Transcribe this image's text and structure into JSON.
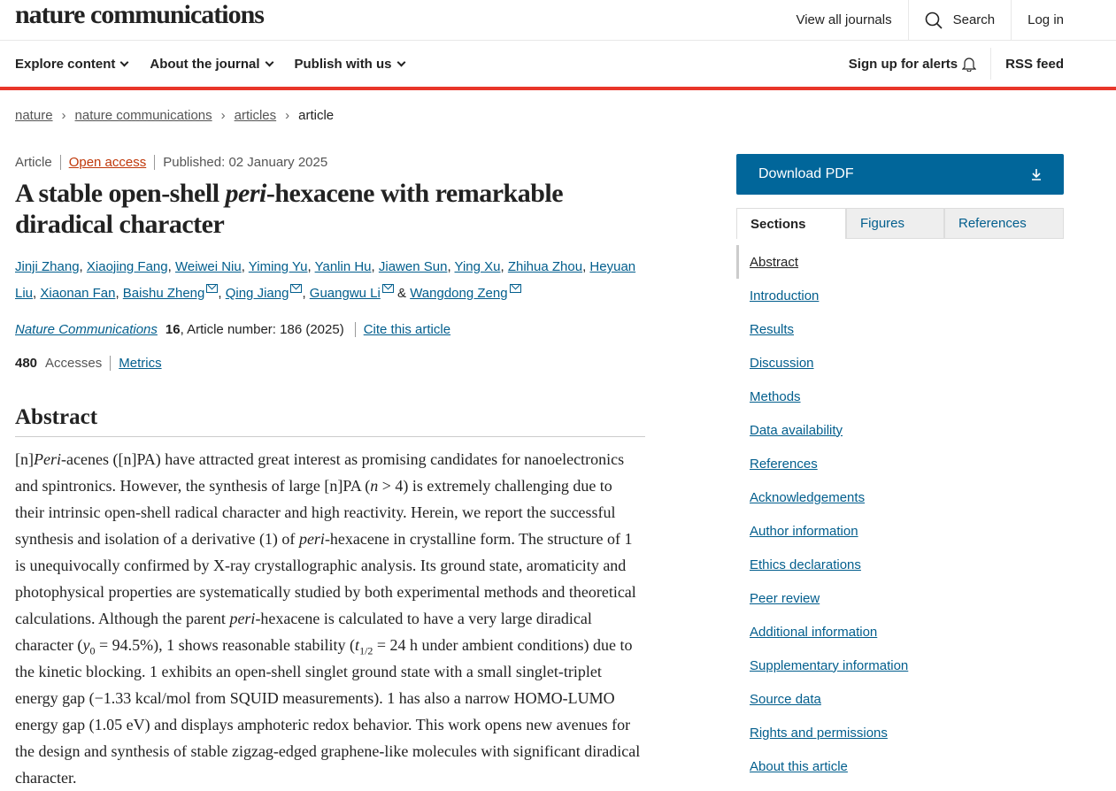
{
  "header": {
    "logo": "nature communications",
    "view_all": "View all journals",
    "search": "Search",
    "login": "Log in"
  },
  "nav": {
    "items": [
      "Explore content",
      "About the journal",
      "Publish with us"
    ],
    "alerts": "Sign up for alerts",
    "rss": "RSS feed"
  },
  "breadcrumb": [
    "nature",
    "nature communications",
    "articles",
    "article"
  ],
  "meta": {
    "type": "Article",
    "access": "Open access",
    "published": "Published: 02 January 2025"
  },
  "title": {
    "pre": "A stable open-shell ",
    "italic": "peri",
    "post": "-hexacene with remarkable diradical character"
  },
  "authors": [
    {
      "name": "Jinji Zhang",
      "mail": false
    },
    {
      "name": "Xiaojing Fang",
      "mail": false
    },
    {
      "name": "Weiwei Niu",
      "mail": false
    },
    {
      "name": "Yiming Yu",
      "mail": false
    },
    {
      "name": "Yanlin Hu",
      "mail": false
    },
    {
      "name": "Jiawen Sun",
      "mail": false
    },
    {
      "name": "Ying Xu",
      "mail": false
    },
    {
      "name": "Zhihua Zhou",
      "mail": false
    },
    {
      "name": "Heyuan Liu",
      "mail": false
    },
    {
      "name": "Xiaonan Fan",
      "mail": false
    },
    {
      "name": "Baishu Zheng",
      "mail": true
    },
    {
      "name": "Qing Jiang",
      "mail": true
    },
    {
      "name": "Guangwu Li",
      "mail": true
    },
    {
      "name": "Wangdong Zeng",
      "mail": true
    }
  ],
  "journal": {
    "name": "Nature Communications",
    "volume": "16",
    "article": ", Article number: 186 (2025)",
    "cite": "Cite this article"
  },
  "metrics": {
    "count": "480",
    "label": "Accesses",
    "link": "Metrics"
  },
  "abstract": {
    "heading": "Abstract",
    "segments": [
      {
        "t": "[n]"
      },
      {
        "t": "Peri",
        "s": "i"
      },
      {
        "t": "-acenes ([n]PA) have attracted great interest as promising candidates for nanoelectronics and spintronics. However, the synthesis of large [n]PA ("
      },
      {
        "t": "n",
        "s": "i"
      },
      {
        "t": " > 4) is extremely challenging due to their intrinsic open-shell radical character and high reactivity. Herein, we report the successful synthesis and isolation of a derivative (1) of "
      },
      {
        "t": "peri",
        "s": "i"
      },
      {
        "t": "-hexacene in crystalline form. The structure of 1 is unequivocally confirmed by X-ray crystallographic analysis. Its ground state, aromaticity and photophysical properties are systematically studied by both experimental methods and theoretical calculations. Although the parent "
      },
      {
        "t": "peri",
        "s": "i"
      },
      {
        "t": "-hexacene is calculated to have a very large diradical character ("
      },
      {
        "t": "y",
        "s": "i"
      },
      {
        "t": "0",
        "s": "sub"
      },
      {
        "t": " = 94.5%), 1 shows reasonable stability ("
      },
      {
        "t": "t",
        "s": "i"
      },
      {
        "t": "1/2",
        "s": "sub"
      },
      {
        "t": " = 24 h under ambient conditions) due to the kinetic blocking. 1 exhibits an open-shell singlet ground state with a small singlet-triplet energy gap (−1.33 kcal/mol from SQUID measurements). 1 has also a narrow HOMO-LUMO energy gap (1.05 eV) and displays amphoteric redox behavior. This work opens new avenues for the design and synthesis of stable zigzag-edged graphene-like molecules with significant diradical character."
      }
    ]
  },
  "sidebar": {
    "download": "Download PDF",
    "tabs": [
      "Sections",
      "Figures",
      "References"
    ],
    "sections": [
      "Abstract",
      "Introduction",
      "Results",
      "Discussion",
      "Methods",
      "Data availability",
      "References",
      "Acknowledgements",
      "Author information",
      "Ethics declarations",
      "Peer review",
      "Additional information",
      "Supplementary information",
      "Source data",
      "Rights and permissions",
      "About this article"
    ]
  },
  "colors": {
    "accent": "#01669a",
    "brand_red": "#e8352a",
    "link": "#025e8d"
  }
}
